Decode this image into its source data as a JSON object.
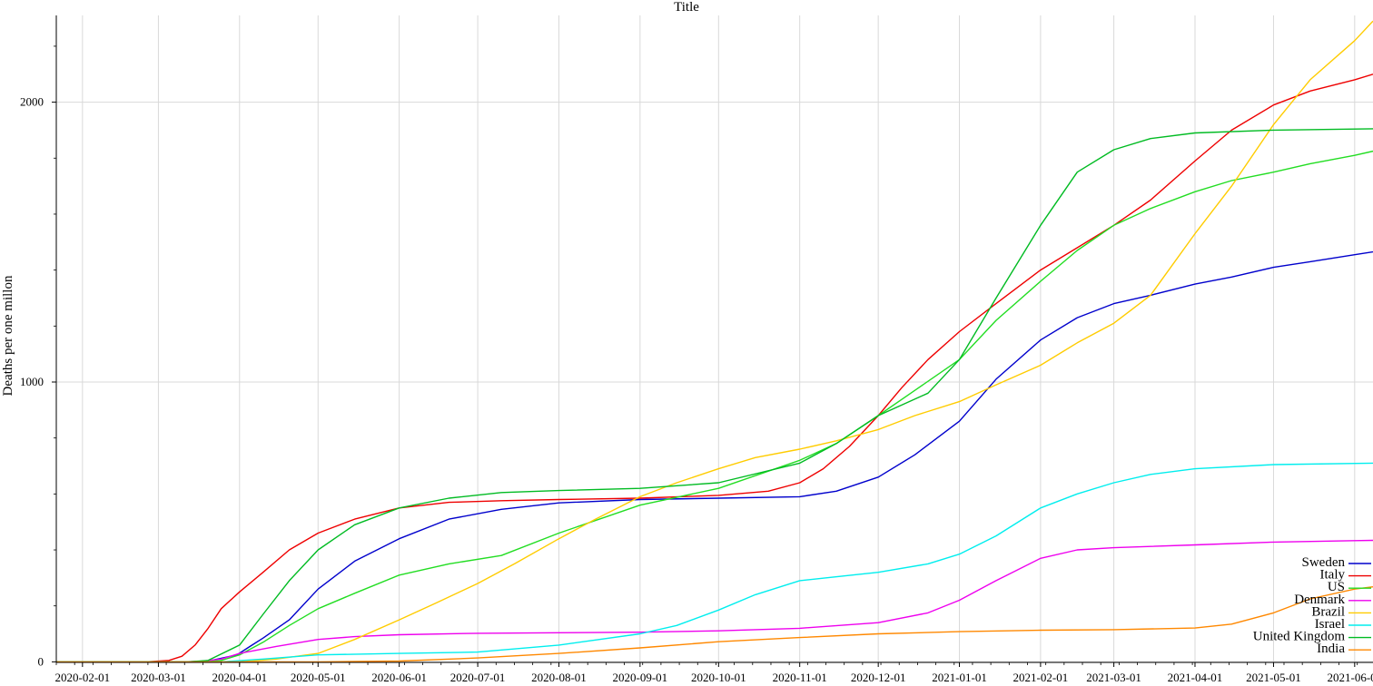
{
  "chart_data": {
    "type": "line",
    "title": "Title",
    "xlabel": "",
    "ylabel": "Deaths per one millon",
    "x_type": "date",
    "xlim": [
      "2020-01-22",
      "2021-06-08"
    ],
    "ylim": [
      -2,
      2310
    ],
    "grid": true,
    "legend_position": "bottom-right",
    "x_ticks": [
      "2020-02-01",
      "2020-03-01",
      "2020-04-01",
      "2020-05-01",
      "2020-06-01",
      "2020-07-01",
      "2020-08-01",
      "2020-09-01",
      "2020-10-01",
      "2020-11-01",
      "2020-12-01",
      "2021-01-01",
      "2021-02-01",
      "2021-03-01",
      "2021-04-01",
      "2021-05-01",
      "2021-06-01"
    ],
    "y_ticks": [
      0,
      1000,
      2000
    ],
    "series": [
      {
        "name": "Sweden",
        "color": "#0000cc",
        "points": [
          [
            "2020-01-22",
            0
          ],
          [
            "2020-03-10",
            0
          ],
          [
            "2020-03-20",
            3
          ],
          [
            "2020-03-31",
            25
          ],
          [
            "2020-04-05",
            55
          ],
          [
            "2020-04-10",
            85
          ],
          [
            "2020-04-20",
            150
          ],
          [
            "2020-05-01",
            260
          ],
          [
            "2020-05-15",
            360
          ],
          [
            "2020-06-01",
            440
          ],
          [
            "2020-06-20",
            510
          ],
          [
            "2020-07-10",
            545
          ],
          [
            "2020-08-01",
            568
          ],
          [
            "2020-09-01",
            580
          ],
          [
            "2020-10-01",
            585
          ],
          [
            "2020-11-01",
            590
          ],
          [
            "2020-11-15",
            610
          ],
          [
            "2020-12-01",
            660
          ],
          [
            "2020-12-15",
            740
          ],
          [
            "2021-01-01",
            860
          ],
          [
            "2021-01-15",
            1010
          ],
          [
            "2021-02-01",
            1150
          ],
          [
            "2021-02-15",
            1230
          ],
          [
            "2021-03-01",
            1280
          ],
          [
            "2021-03-15",
            1310
          ],
          [
            "2021-04-01",
            1350
          ],
          [
            "2021-04-15",
            1375
          ],
          [
            "2021-05-01",
            1410
          ],
          [
            "2021-05-15",
            1430
          ],
          [
            "2021-06-01",
            1455
          ],
          [
            "2021-06-08",
            1465
          ]
        ]
      },
      {
        "name": "Italy",
        "color": "#ee0000",
        "points": [
          [
            "2020-01-22",
            0
          ],
          [
            "2020-02-25",
            0
          ],
          [
            "2020-03-05",
            5
          ],
          [
            "2020-03-10",
            20
          ],
          [
            "2020-03-15",
            60
          ],
          [
            "2020-03-20",
            120
          ],
          [
            "2020-03-25",
            190
          ],
          [
            "2020-04-01",
            250
          ],
          [
            "2020-04-10",
            320
          ],
          [
            "2020-04-20",
            400
          ],
          [
            "2020-05-01",
            460
          ],
          [
            "2020-05-15",
            510
          ],
          [
            "2020-06-01",
            550
          ],
          [
            "2020-06-20",
            570
          ],
          [
            "2020-07-10",
            576
          ],
          [
            "2020-08-01",
            580
          ],
          [
            "2020-09-01",
            585
          ],
          [
            "2020-10-01",
            595
          ],
          [
            "2020-10-20",
            610
          ],
          [
            "2020-11-01",
            640
          ],
          [
            "2020-11-10",
            690
          ],
          [
            "2020-11-20",
            770
          ],
          [
            "2020-12-01",
            880
          ],
          [
            "2020-12-10",
            980
          ],
          [
            "2020-12-20",
            1080
          ],
          [
            "2021-01-01",
            1180
          ],
          [
            "2021-01-15",
            1280
          ],
          [
            "2021-02-01",
            1400
          ],
          [
            "2021-02-15",
            1480
          ],
          [
            "2021-03-01",
            1560
          ],
          [
            "2021-03-15",
            1650
          ],
          [
            "2021-04-01",
            1790
          ],
          [
            "2021-04-15",
            1900
          ],
          [
            "2021-05-01",
            1990
          ],
          [
            "2021-05-15",
            2040
          ],
          [
            "2021-06-01",
            2080
          ],
          [
            "2021-06-08",
            2100
          ]
        ]
      },
      {
        "name": "US",
        "color": "#22dd22",
        "points": [
          [
            "2020-01-22",
            0
          ],
          [
            "2020-03-15",
            0
          ],
          [
            "2020-03-25",
            5
          ],
          [
            "2020-04-01",
            25
          ],
          [
            "2020-04-10",
            70
          ],
          [
            "2020-04-20",
            130
          ],
          [
            "2020-05-01",
            190
          ],
          [
            "2020-05-15",
            245
          ],
          [
            "2020-06-01",
            310
          ],
          [
            "2020-06-20",
            350
          ],
          [
            "2020-07-10",
            380
          ],
          [
            "2020-08-01",
            460
          ],
          [
            "2020-09-01",
            560
          ],
          [
            "2020-10-01",
            620
          ],
          [
            "2020-11-01",
            720
          ],
          [
            "2020-11-15",
            780
          ],
          [
            "2020-12-01",
            880
          ],
          [
            "2020-12-15",
            970
          ],
          [
            "2021-01-01",
            1080
          ],
          [
            "2021-01-15",
            1220
          ],
          [
            "2021-02-01",
            1360
          ],
          [
            "2021-02-15",
            1470
          ],
          [
            "2021-03-01",
            1560
          ],
          [
            "2021-03-15",
            1620
          ],
          [
            "2021-04-01",
            1680
          ],
          [
            "2021-04-15",
            1720
          ],
          [
            "2021-05-01",
            1750
          ],
          [
            "2021-05-15",
            1780
          ],
          [
            "2021-06-01",
            1810
          ],
          [
            "2021-06-08",
            1825
          ]
        ]
      },
      {
        "name": "Denmark",
        "color": "#ee00ee",
        "points": [
          [
            "2020-01-22",
            0
          ],
          [
            "2020-03-15",
            0
          ],
          [
            "2020-03-25",
            10
          ],
          [
            "2020-04-01",
            30
          ],
          [
            "2020-04-15",
            55
          ],
          [
            "2020-05-01",
            80
          ],
          [
            "2020-05-15",
            90
          ],
          [
            "2020-06-01",
            97
          ],
          [
            "2020-07-01",
            102
          ],
          [
            "2020-08-01",
            104
          ],
          [
            "2020-09-01",
            106
          ],
          [
            "2020-10-01",
            111
          ],
          [
            "2020-11-01",
            120
          ],
          [
            "2020-12-01",
            140
          ],
          [
            "2020-12-20",
            175
          ],
          [
            "2021-01-01",
            220
          ],
          [
            "2021-01-15",
            290
          ],
          [
            "2021-02-01",
            370
          ],
          [
            "2021-02-15",
            400
          ],
          [
            "2021-03-01",
            408
          ],
          [
            "2021-04-01",
            418
          ],
          [
            "2021-05-01",
            428
          ],
          [
            "2021-06-01",
            433
          ],
          [
            "2021-06-08",
            434
          ]
        ]
      },
      {
        "name": "Brazil",
        "color": "#ffcc00",
        "points": [
          [
            "2020-01-22",
            0
          ],
          [
            "2020-04-01",
            0
          ],
          [
            "2020-04-15",
            10
          ],
          [
            "2020-05-01",
            30
          ],
          [
            "2020-05-15",
            80
          ],
          [
            "2020-06-01",
            150
          ],
          [
            "2020-06-15",
            210
          ],
          [
            "2020-07-01",
            280
          ],
          [
            "2020-07-15",
            350
          ],
          [
            "2020-08-01",
            440
          ],
          [
            "2020-08-15",
            510
          ],
          [
            "2020-09-01",
            590
          ],
          [
            "2020-09-15",
            640
          ],
          [
            "2020-10-01",
            690
          ],
          [
            "2020-10-15",
            730
          ],
          [
            "2020-11-01",
            760
          ],
          [
            "2020-11-15",
            790
          ],
          [
            "2020-12-01",
            830
          ],
          [
            "2020-12-15",
            880
          ],
          [
            "2021-01-01",
            930
          ],
          [
            "2021-01-15",
            990
          ],
          [
            "2021-02-01",
            1060
          ],
          [
            "2021-02-15",
            1140
          ],
          [
            "2021-03-01",
            1210
          ],
          [
            "2021-03-15",
            1310
          ],
          [
            "2021-04-01",
            1530
          ],
          [
            "2021-04-15",
            1700
          ],
          [
            "2021-05-01",
            1920
          ],
          [
            "2021-05-15",
            2080
          ],
          [
            "2021-06-01",
            2220
          ],
          [
            "2021-06-08",
            2290
          ]
        ]
      },
      {
        "name": "Israel",
        "color": "#00eeee",
        "points": [
          [
            "2020-01-22",
            0
          ],
          [
            "2020-03-25",
            0
          ],
          [
            "2020-04-10",
            10
          ],
          [
            "2020-05-01",
            25
          ],
          [
            "2020-06-01",
            30
          ],
          [
            "2020-07-01",
            35
          ],
          [
            "2020-08-01",
            60
          ],
          [
            "2020-09-01",
            100
          ],
          [
            "2020-09-15",
            130
          ],
          [
            "2020-10-01",
            185
          ],
          [
            "2020-10-15",
            240
          ],
          [
            "2020-11-01",
            290
          ],
          [
            "2020-12-01",
            320
          ],
          [
            "2020-12-20",
            350
          ],
          [
            "2021-01-01",
            385
          ],
          [
            "2021-01-15",
            450
          ],
          [
            "2021-02-01",
            550
          ],
          [
            "2021-02-15",
            600
          ],
          [
            "2021-03-01",
            640
          ],
          [
            "2021-03-15",
            670
          ],
          [
            "2021-04-01",
            690
          ],
          [
            "2021-05-01",
            705
          ],
          [
            "2021-06-08",
            710
          ]
        ]
      },
      {
        "name": "United Kingdom",
        "color": "#00bb22",
        "points": [
          [
            "2020-01-22",
            0
          ],
          [
            "2020-03-12",
            0
          ],
          [
            "2020-03-20",
            5
          ],
          [
            "2020-04-01",
            60
          ],
          [
            "2020-04-10",
            170
          ],
          [
            "2020-04-20",
            290
          ],
          [
            "2020-05-01",
            400
          ],
          [
            "2020-05-15",
            490
          ],
          [
            "2020-06-01",
            550
          ],
          [
            "2020-06-20",
            585
          ],
          [
            "2020-07-10",
            605
          ],
          [
            "2020-08-01",
            612
          ],
          [
            "2020-09-01",
            620
          ],
          [
            "2020-10-01",
            640
          ],
          [
            "2020-11-01",
            710
          ],
          [
            "2020-11-15",
            780
          ],
          [
            "2020-12-01",
            880
          ],
          [
            "2020-12-20",
            960
          ],
          [
            "2021-01-01",
            1080
          ],
          [
            "2021-01-15",
            1300
          ],
          [
            "2021-02-01",
            1560
          ],
          [
            "2021-02-15",
            1750
          ],
          [
            "2021-03-01",
            1830
          ],
          [
            "2021-03-15",
            1870
          ],
          [
            "2021-04-01",
            1890
          ],
          [
            "2021-05-01",
            1900
          ],
          [
            "2021-06-08",
            1905
          ]
        ]
      },
      {
        "name": "India",
        "color": "#ff8800",
        "points": [
          [
            "2020-01-22",
            0
          ],
          [
            "2020-05-01",
            0
          ],
          [
            "2020-06-01",
            3
          ],
          [
            "2020-07-01",
            14
          ],
          [
            "2020-08-01",
            30
          ],
          [
            "2020-09-01",
            50
          ],
          [
            "2020-10-01",
            72
          ],
          [
            "2020-11-01",
            87
          ],
          [
            "2020-12-01",
            100
          ],
          [
            "2021-01-01",
            108
          ],
          [
            "2021-02-01",
            113
          ],
          [
            "2021-03-01",
            115
          ],
          [
            "2021-04-01",
            121
          ],
          [
            "2021-04-15",
            135
          ],
          [
            "2021-05-01",
            175
          ],
          [
            "2021-05-15",
            225
          ],
          [
            "2021-06-01",
            260
          ],
          [
            "2021-06-08",
            268
          ]
        ]
      }
    ]
  }
}
